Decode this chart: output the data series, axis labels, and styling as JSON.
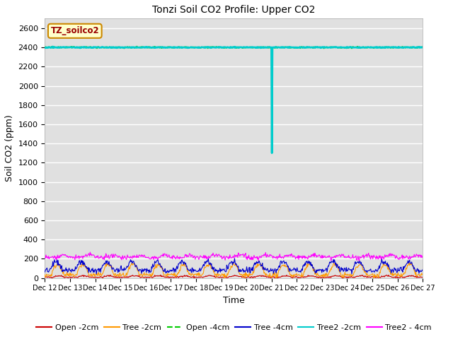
{
  "title": "Tonzi Soil CO2 Profile: Upper CO2",
  "xlabel": "Time",
  "ylabel": "Soil CO2 (ppm)",
  "ylim": [
    0,
    2700
  ],
  "yticks": [
    0,
    200,
    400,
    600,
    800,
    1000,
    1200,
    1400,
    1600,
    1800,
    2000,
    2200,
    2400,
    2600
  ],
  "background_color": "#e0e0e0",
  "legend_label": "TZ_soilco2",
  "series_colors": {
    "open2cm": "#cc0000",
    "tree2cm": "#ff9900",
    "open4cm": "#00cc00",
    "tree4cm": "#0000cc",
    "tree2_2cm": "#00cccc",
    "tree2_4cm": "#ff00ff"
  },
  "series_labels": [
    "Open -2cm",
    "Tree -2cm",
    "Open -4cm",
    "Tree -4cm",
    "Tree2 -2cm",
    "Tree2 - 4cm"
  ],
  "figsize": [
    6.4,
    4.8
  ],
  "dpi": 100
}
